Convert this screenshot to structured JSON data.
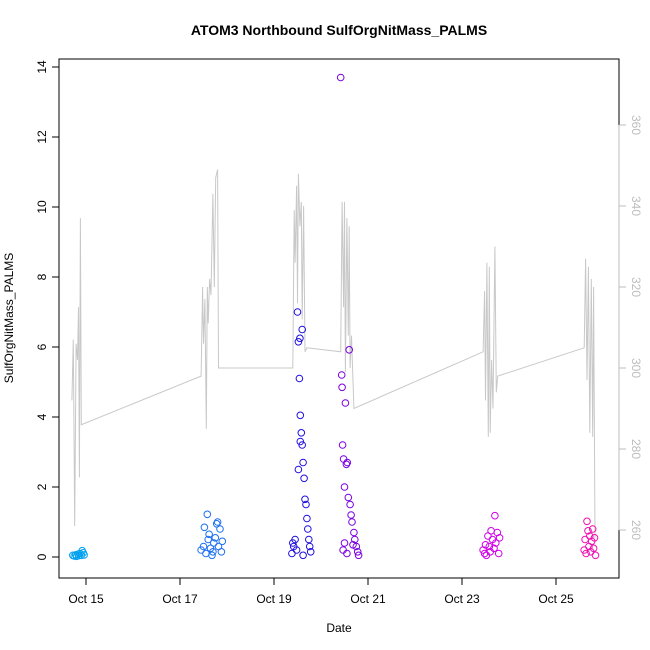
{
  "chart_data": {
    "type": "scatter",
    "title": "ATOM3 Northbound SulfOrgNitMass_PALMS",
    "xlabel": "Date",
    "ylabel": "SulfOrgNitMass_PALMS",
    "ylim": [
      0,
      14
    ],
    "y_ticks": [
      0,
      2,
      4,
      6,
      8,
      10,
      12,
      14
    ],
    "x_ticks": [
      {
        "label": "Oct 15",
        "day": 15
      },
      {
        "label": "Oct 17",
        "day": 17
      },
      {
        "label": "Oct 19",
        "day": 19
      },
      {
        "label": "Oct 21",
        "day": 21
      },
      {
        "label": "Oct 23",
        "day": 23
      },
      {
        "label": "Oct 25",
        "day": 25
      }
    ],
    "xlim_days": [
      14.0,
      26.3
    ],
    "right_axis": {
      "ylim": [
        250,
        375
      ],
      "ticks": [
        260,
        280,
        300,
        320,
        340,
        360
      ],
      "color": "#bdbdbd"
    },
    "grid": false,
    "legend": "none",
    "series": [
      {
        "color": "#00a0f0",
        "points": [
          [
            14.72,
            0.05
          ],
          [
            14.75,
            0.03
          ],
          [
            14.78,
            0.06
          ],
          [
            14.8,
            0.02
          ],
          [
            14.83,
            0.08
          ],
          [
            14.85,
            0.04
          ],
          [
            14.87,
            0.1
          ],
          [
            14.9,
            0.05
          ],
          [
            14.92,
            0.18
          ],
          [
            14.94,
            0.12
          ],
          [
            14.96,
            0.06
          ]
        ]
      },
      {
        "color": "#1e70f0",
        "points": [
          [
            17.45,
            0.2
          ],
          [
            17.5,
            0.3
          ],
          [
            17.52,
            0.85
          ],
          [
            17.55,
            0.1
          ],
          [
            17.58,
            1.22
          ],
          [
            17.6,
            0.5
          ],
          [
            17.62,
            0.65
          ],
          [
            17.65,
            0.25
          ],
          [
            17.68,
            0.05
          ],
          [
            17.7,
            0.15
          ],
          [
            17.72,
            0.4
          ],
          [
            17.75,
            0.55
          ],
          [
            17.78,
            0.95
          ],
          [
            17.8,
            1.0
          ],
          [
            17.82,
            0.3
          ],
          [
            17.85,
            0.8
          ],
          [
            17.88,
            0.15
          ],
          [
            17.9,
            0.45
          ]
        ]
      },
      {
        "color": "#2010e0",
        "points": [
          [
            19.38,
            0.1
          ],
          [
            19.4,
            0.4
          ],
          [
            19.42,
            0.3
          ],
          [
            19.45,
            0.5
          ],
          [
            19.48,
            0.2
          ],
          [
            19.5,
            7.0
          ],
          [
            19.52,
            6.15
          ],
          [
            19.54,
            5.1
          ],
          [
            19.55,
            6.25
          ],
          [
            19.56,
            4.05
          ],
          [
            19.58,
            3.55
          ],
          [
            19.6,
            3.2
          ],
          [
            19.62,
            2.7
          ],
          [
            19.64,
            2.25
          ],
          [
            19.66,
            1.65
          ],
          [
            19.68,
            1.5
          ],
          [
            19.7,
            1.1
          ],
          [
            19.72,
            0.8
          ],
          [
            19.74,
            0.5
          ],
          [
            19.76,
            0.3
          ],
          [
            19.78,
            0.15
          ],
          [
            19.6,
            6.5
          ],
          [
            19.52,
            2.5
          ],
          [
            19.56,
            3.3
          ],
          [
            19.62,
            0.05
          ]
        ]
      },
      {
        "color": "#7a00e0",
        "points": [
          [
            20.42,
            13.7
          ],
          [
            20.44,
            5.2
          ],
          [
            20.45,
            4.85
          ],
          [
            20.46,
            3.2
          ],
          [
            20.48,
            2.8
          ],
          [
            20.5,
            2.0
          ],
          [
            20.52,
            4.4
          ],
          [
            20.54,
            2.65
          ],
          [
            20.56,
            2.7
          ],
          [
            20.58,
            1.7
          ],
          [
            20.6,
            5.92
          ],
          [
            20.62,
            1.5
          ],
          [
            20.64,
            1.2
          ],
          [
            20.66,
            1.0
          ],
          [
            20.7,
            0.7
          ],
          [
            20.72,
            0.5
          ],
          [
            20.75,
            0.3
          ],
          [
            20.78,
            0.15
          ],
          [
            20.8,
            0.05
          ],
          [
            20.47,
            0.2
          ],
          [
            20.5,
            0.4
          ],
          [
            20.55,
            0.1
          ],
          [
            20.68,
            0.35
          ]
        ]
      },
      {
        "color": "#d000e8",
        "points": [
          [
            23.45,
            0.2
          ],
          [
            23.48,
            0.1
          ],
          [
            23.5,
            0.35
          ],
          [
            23.52,
            0.05
          ],
          [
            23.55,
            0.6
          ],
          [
            23.58,
            0.3
          ],
          [
            23.6,
            0.15
          ],
          [
            23.62,
            0.75
          ],
          [
            23.65,
            0.5
          ],
          [
            23.68,
            0.25
          ],
          [
            23.7,
            1.18
          ],
          [
            23.72,
            0.4
          ],
          [
            23.75,
            0.7
          ],
          [
            23.78,
            0.1
          ],
          [
            23.8,
            0.55
          ]
        ]
      },
      {
        "color": "#f010b0",
        "points": [
          [
            25.6,
            0.2
          ],
          [
            25.62,
            0.5
          ],
          [
            25.64,
            0.1
          ],
          [
            25.66,
            1.02
          ],
          [
            25.68,
            0.75
          ],
          [
            25.7,
            0.3
          ],
          [
            25.72,
            0.6
          ],
          [
            25.74,
            0.15
          ],
          [
            25.76,
            0.45
          ],
          [
            25.78,
            0.8
          ],
          [
            25.8,
            0.25
          ],
          [
            25.82,
            0.55
          ],
          [
            25.84,
            0.05
          ]
        ]
      }
    ],
    "right_series": {
      "name": "",
      "color": "#c8c8c8",
      "points": [
        [
          14.7,
          292
        ],
        [
          14.73,
          307
        ],
        [
          14.76,
          261
        ],
        [
          14.79,
          306
        ],
        [
          14.82,
          302
        ],
        [
          14.84,
          315
        ],
        [
          14.86,
          273
        ],
        [
          14.88,
          337
        ],
        [
          14.9,
          286
        ],
        [
          17.45,
          298
        ],
        [
          17.48,
          320
        ],
        [
          17.5,
          306
        ],
        [
          17.53,
          317
        ],
        [
          17.56,
          285
        ],
        [
          17.58,
          320
        ],
        [
          17.6,
          311
        ],
        [
          17.63,
          322
        ],
        [
          17.66,
          318
        ],
        [
          17.7,
          343
        ],
        [
          17.73,
          320
        ],
        [
          17.76,
          347
        ],
        [
          17.8,
          349
        ],
        [
          17.82,
          300
        ],
        [
          19.4,
          300
        ],
        [
          19.43,
          339
        ],
        [
          19.45,
          326
        ],
        [
          19.48,
          345
        ],
        [
          19.5,
          316
        ],
        [
          19.52,
          348
        ],
        [
          19.55,
          335
        ],
        [
          19.58,
          341
        ],
        [
          19.6,
          312
        ],
        [
          19.63,
          340
        ],
        [
          19.66,
          304
        ],
        [
          19.7,
          305
        ],
        [
          20.42,
          304
        ],
        [
          20.45,
          341
        ],
        [
          20.48,
          315
        ],
        [
          20.5,
          341
        ],
        [
          20.52,
          299
        ],
        [
          20.55,
          337
        ],
        [
          20.58,
          308
        ],
        [
          20.6,
          335
        ],
        [
          20.62,
          300
        ],
        [
          20.65,
          308
        ],
        [
          20.7,
          290
        ],
        [
          23.45,
          304
        ],
        [
          23.48,
          319
        ],
        [
          23.5,
          292
        ],
        [
          23.53,
          326
        ],
        [
          23.56,
          283
        ],
        [
          23.58,
          325
        ],
        [
          23.6,
          284
        ],
        [
          23.63,
          302
        ],
        [
          23.66,
          290
        ],
        [
          23.7,
          330
        ],
        [
          23.73,
          294
        ],
        [
          23.76,
          298
        ],
        [
          25.6,
          305
        ],
        [
          25.63,
          327
        ],
        [
          25.66,
          297
        ],
        [
          25.69,
          325
        ],
        [
          25.72,
          284
        ],
        [
          25.75,
          322
        ],
        [
          25.78,
          283
        ],
        [
          25.8,
          320
        ],
        [
          25.83,
          258
        ]
      ]
    }
  }
}
